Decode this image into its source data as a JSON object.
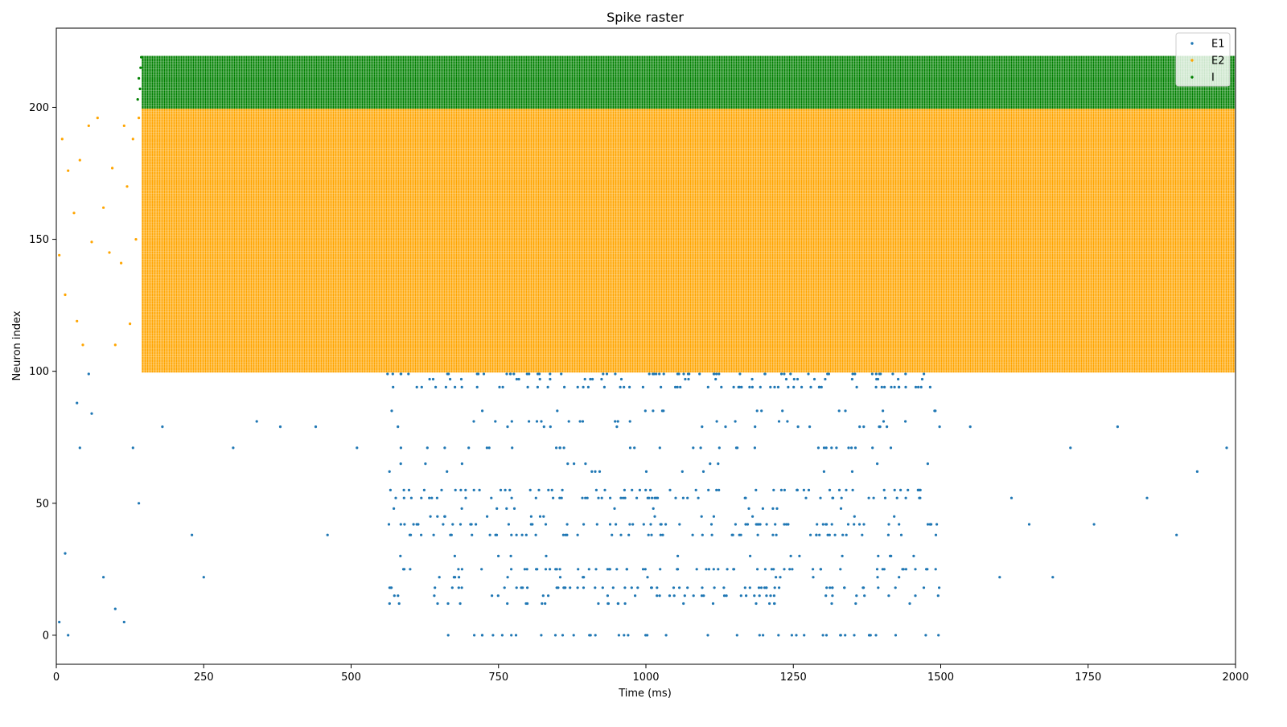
{
  "chart_data": {
    "type": "scatter",
    "title": "Spike raster",
    "xlabel": "Time (ms)",
    "ylabel": "Neuron index",
    "xlim": [
      0,
      2000
    ],
    "ylim": [
      -11,
      230
    ],
    "xticks": [
      0,
      250,
      500,
      750,
      1000,
      1250,
      1500,
      1750,
      2000
    ],
    "yticks": [
      0,
      50,
      100,
      150,
      200
    ],
    "grid": false,
    "legend": {
      "placement": "top-right"
    },
    "series": [
      {
        "name": "E1",
        "color": "#1f77b4",
        "neuron_range": [
          0,
          99
        ],
        "description_of_pattern": "sparse spikes 0-145 ms; dense irregular firing 560-1500 ms on a subset of neurons; very sparse after 1500 ms",
        "active_rows": [
          0,
          12,
          15,
          18,
          22,
          25,
          30,
          38,
          42,
          45,
          48,
          52,
          55,
          62,
          65,
          71,
          79,
          81,
          85,
          94,
          97,
          99
        ],
        "window": [
          560,
          1500
        ],
        "sample_points": [
          [
            5,
            5
          ],
          [
            15,
            31
          ],
          [
            20,
            0
          ],
          [
            35,
            88
          ],
          [
            40,
            71
          ],
          [
            55,
            99
          ],
          [
            60,
            84
          ],
          [
            80,
            22
          ],
          [
            100,
            10
          ],
          [
            115,
            5
          ],
          [
            130,
            71
          ],
          [
            140,
            50
          ],
          [
            180,
            79
          ],
          [
            230,
            38
          ],
          [
            250,
            22
          ],
          [
            300,
            71
          ],
          [
            340,
            81
          ],
          [
            380,
            79
          ],
          [
            440,
            79
          ],
          [
            460,
            38
          ],
          [
            510,
            71
          ],
          [
            1550,
            79
          ],
          [
            1600,
            22
          ],
          [
            1620,
            52
          ],
          [
            1650,
            42
          ],
          [
            1690,
            22
          ],
          [
            1720,
            71
          ],
          [
            1760,
            42
          ],
          [
            1800,
            79
          ],
          [
            1850,
            52
          ],
          [
            1900,
            38
          ],
          [
            1935,
            62
          ],
          [
            1985,
            71
          ]
        ]
      },
      {
        "name": "E2",
        "color": "#ffa500",
        "neuron_range": [
          100,
          199
        ],
        "description_of_pattern": "sparse spikes 0-145 ms; after ~145 ms every neuron fires continuously (dense rows) to 2000 ms",
        "dense_window": [
          145,
          2000
        ],
        "sample_points": [
          [
            5,
            144
          ],
          [
            10,
            188
          ],
          [
            15,
            129
          ],
          [
            20,
            176
          ],
          [
            30,
            160
          ],
          [
            35,
            119
          ],
          [
            40,
            180
          ],
          [
            45,
            110
          ],
          [
            55,
            193
          ],
          [
            60,
            149
          ],
          [
            70,
            196
          ],
          [
            80,
            162
          ],
          [
            90,
            145
          ],
          [
            95,
            177
          ],
          [
            100,
            110
          ],
          [
            110,
            141
          ],
          [
            115,
            193
          ],
          [
            120,
            170
          ],
          [
            125,
            118
          ],
          [
            130,
            188
          ],
          [
            135,
            150
          ],
          [
            140,
            196
          ]
        ]
      },
      {
        "name": "I",
        "color": "#008000",
        "neuron_range": [
          200,
          219
        ],
        "description_of_pattern": "onset ~140 ms; every neuron fires continuously (dense rows) to 2000 ms",
        "dense_window": [
          145,
          2000
        ],
        "sample_points": [
          [
            138,
            203
          ],
          [
            140,
            211
          ],
          [
            142,
            207
          ],
          [
            143,
            215
          ],
          [
            144,
            219
          ]
        ]
      }
    ]
  }
}
